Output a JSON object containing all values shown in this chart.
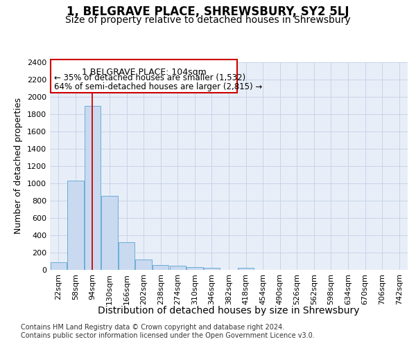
{
  "title": "1, BELGRAVE PLACE, SHREWSBURY, SY2 5LJ",
  "subtitle": "Size of property relative to detached houses in Shrewsbury",
  "xlabel": "Distribution of detached houses by size in Shrewsbury",
  "ylabel": "Number of detached properties",
  "footer_line1": "Contains HM Land Registry data © Crown copyright and database right 2024.",
  "footer_line2": "Contains public sector information licensed under the Open Government Licence v3.0.",
  "bin_labels": [
    "22sqm",
    "58sqm",
    "94sqm",
    "130sqm",
    "166sqm",
    "202sqm",
    "238sqm",
    "274sqm",
    "310sqm",
    "346sqm",
    "382sqm",
    "418sqm",
    "454sqm",
    "490sqm",
    "526sqm",
    "562sqm",
    "598sqm",
    "634sqm",
    "670sqm",
    "706sqm",
    "742sqm"
  ],
  "bar_values": [
    90,
    1030,
    1900,
    860,
    320,
    120,
    55,
    50,
    35,
    22,
    0,
    22,
    0,
    0,
    0,
    0,
    0,
    0,
    0,
    0,
    0
  ],
  "bar_color": "#c9d9f0",
  "bar_edge_color": "#6baed6",
  "grid_color": "#c8d4e8",
  "background_color": "#e8eef8",
  "ylim": [
    0,
    2400
  ],
  "yticks": [
    0,
    200,
    400,
    600,
    800,
    1000,
    1200,
    1400,
    1600,
    1800,
    2000,
    2200,
    2400
  ],
  "property_label": "1 BELGRAVE PLACE: 104sqm",
  "annotation_line1": "← 35% of detached houses are smaller (1,532)",
  "annotation_line2": "64% of semi-detached houses are larger (2,815) →",
  "vline_color": "#cc0000",
  "vline_x": 2.0,
  "annotation_box_edge": "#cc0000",
  "title_fontsize": 12,
  "subtitle_fontsize": 10,
  "xlabel_fontsize": 10,
  "ylabel_fontsize": 9,
  "tick_fontsize": 8,
  "annotation_fontsize": 9,
  "footer_fontsize": 7
}
